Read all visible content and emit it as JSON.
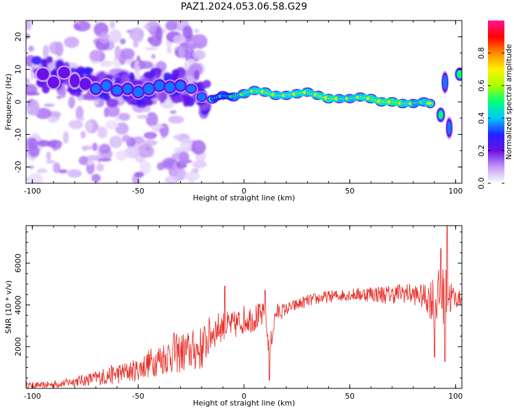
{
  "chart_data": [
    {
      "type": "heatmap",
      "title": "PAZ1.2024.053.06.58.G29",
      "xlabel": "Height of straight line (km)",
      "ylabel": "Frequency (Hz)",
      "xlim": [
        -103,
        103
      ],
      "ylim": [
        -25,
        25
      ],
      "xticks": [
        -100,
        -50,
        0,
        50,
        100
      ],
      "yticks": [
        -20,
        -10,
        0,
        10,
        20
      ],
      "colorbar": {
        "label": "Normalized spectral amplitude",
        "range": [
          0,
          1
        ],
        "ticks": [
          "0.0",
          "0.2",
          "0.4",
          "0.6",
          "0.8"
        ],
        "colormap": [
          "#ffffff",
          "#c39bf6",
          "#6a10e8",
          "#2323ff",
          "#00c8ff",
          "#00ff7a",
          "#a9ff00",
          "#fff200",
          "#ff8a00",
          "#ff0000",
          "#ff1493"
        ]
      },
      "ridge": [
        {
          "x": -95,
          "y": 8.5,
          "a": 0.25,
          "w": 3.5,
          "h": 2.2
        },
        {
          "x": -90,
          "y": 6.0,
          "a": 0.3,
          "w": 3.0,
          "h": 2.0
        },
        {
          "x": -85,
          "y": 9.0,
          "a": 0.28,
          "w": 3.2,
          "h": 2.0
        },
        {
          "x": -80,
          "y": 6.5,
          "a": 0.25,
          "w": 2.8,
          "h": 2.5
        },
        {
          "x": -75,
          "y": 5.5,
          "a": 0.3,
          "w": 3.0,
          "h": 2.0
        },
        {
          "x": -70,
          "y": 4.0,
          "a": 0.35,
          "w": 3.0,
          "h": 2.0
        },
        {
          "x": -65,
          "y": 5.0,
          "a": 0.38,
          "w": 3.0,
          "h": 2.0
        },
        {
          "x": -60,
          "y": 3.5,
          "a": 0.35,
          "w": 3.2,
          "h": 2.0
        },
        {
          "x": -55,
          "y": 4.0,
          "a": 0.36,
          "w": 3.0,
          "h": 2.0
        },
        {
          "x": -50,
          "y": 3.0,
          "a": 0.4,
          "w": 3.0,
          "h": 2.0
        },
        {
          "x": -45,
          "y": 4.0,
          "a": 0.42,
          "w": 3.0,
          "h": 2.0
        },
        {
          "x": -40,
          "y": 5.0,
          "a": 0.38,
          "w": 3.0,
          "h": 2.0
        },
        {
          "x": -35,
          "y": 4.5,
          "a": 0.4,
          "w": 3.0,
          "h": 2.0
        },
        {
          "x": -30,
          "y": 5.0,
          "a": 0.36,
          "w": 3.0,
          "h": 2.0
        },
        {
          "x": -25,
          "y": 4.0,
          "a": 0.4,
          "w": 2.8,
          "h": 1.5
        },
        {
          "x": -20,
          "y": 1.5,
          "a": 0.42,
          "w": 2.5,
          "h": 1.5
        },
        {
          "x": -15,
          "y": 0.8,
          "a": 0.52,
          "w": 2.5,
          "h": 1.2
        },
        {
          "x": -10,
          "y": 2.0,
          "a": 0.5,
          "w": 2.5,
          "h": 1.2
        },
        {
          "x": -5,
          "y": 1.5,
          "a": 0.6,
          "w": 2.5,
          "h": 1.2
        },
        {
          "x": 0,
          "y": 2.5,
          "a": 0.7,
          "w": 2.5,
          "h": 1.2
        },
        {
          "x": 5,
          "y": 3.5,
          "a": 0.72,
          "w": 2.5,
          "h": 1.2
        },
        {
          "x": 10,
          "y": 3.0,
          "a": 0.8,
          "w": 2.5,
          "h": 1.2
        },
        {
          "x": 15,
          "y": 2.0,
          "a": 0.75,
          "w": 2.5,
          "h": 1.2
        },
        {
          "x": 20,
          "y": 2.0,
          "a": 0.7,
          "w": 2.5,
          "h": 1.2
        },
        {
          "x": 25,
          "y": 2.5,
          "a": 0.78,
          "w": 2.5,
          "h": 1.2
        },
        {
          "x": 30,
          "y": 3.0,
          "a": 0.75,
          "w": 2.5,
          "h": 1.2
        },
        {
          "x": 35,
          "y": 2.0,
          "a": 0.72,
          "w": 2.5,
          "h": 1.2
        },
        {
          "x": 40,
          "y": 1.0,
          "a": 0.92,
          "w": 2.5,
          "h": 1.2
        },
        {
          "x": 45,
          "y": 1.0,
          "a": 0.7,
          "w": 2.5,
          "h": 1.2
        },
        {
          "x": 50,
          "y": 1.0,
          "a": 0.72,
          "w": 2.5,
          "h": 1.2
        },
        {
          "x": 55,
          "y": 1.5,
          "a": 0.7,
          "w": 2.5,
          "h": 1.2
        },
        {
          "x": 60,
          "y": 1.0,
          "a": 0.85,
          "w": 2.5,
          "h": 1.2
        },
        {
          "x": 65,
          "y": 0.0,
          "a": 0.75,
          "w": 2.5,
          "h": 1.2
        },
        {
          "x": 70,
          "y": 0.0,
          "a": 0.92,
          "w": 2.5,
          "h": 1.2
        },
        {
          "x": 75,
          "y": -0.5,
          "a": 0.8,
          "w": 2.5,
          "h": 1.2
        },
        {
          "x": 80,
          "y": -0.5,
          "a": 0.65,
          "w": 2.5,
          "h": 1.2
        },
        {
          "x": 85,
          "y": 0.0,
          "a": 0.7,
          "w": 2.5,
          "h": 1.2
        },
        {
          "x": 88,
          "y": -0.5,
          "a": 0.8,
          "w": 2.0,
          "h": 1.2
        },
        {
          "x": 93,
          "y": -4.0,
          "a": 0.5,
          "w": 1.8,
          "h": 2.0
        },
        {
          "x": 95,
          "y": 6.0,
          "a": 0.4,
          "w": 1.5,
          "h": 3.0
        },
        {
          "x": 97,
          "y": -8.0,
          "a": 0.35,
          "w": 1.5,
          "h": 3.0
        },
        {
          "x": 102,
          "y": 8.5,
          "a": 0.55,
          "w": 2.0,
          "h": 1.8
        }
      ]
    },
    {
      "type": "line",
      "xlabel": "Height of straight line (km)",
      "ylabel": "SNR (10 * v/v)",
      "xlim": [
        -103,
        103
      ],
      "ylim": [
        0,
        7800
      ],
      "xticks": [
        -100,
        -50,
        0,
        50,
        100
      ],
      "yticks": [
        2000,
        4000,
        6000
      ],
      "color": "#e8322b",
      "x": [
        -103,
        -95,
        -90,
        -85,
        -80,
        -75,
        -70,
        -65,
        -60,
        -55,
        -50,
        -45,
        -40,
        -35,
        -30,
        -25,
        -20,
        -15,
        -10,
        -5,
        0,
        5,
        10,
        12,
        15,
        20,
        25,
        30,
        35,
        40,
        45,
        50,
        55,
        60,
        65,
        70,
        75,
        80,
        85,
        90,
        95,
        100,
        103
      ],
      "y": [
        150,
        150,
        200,
        250,
        350,
        400,
        500,
        600,
        700,
        800,
        900,
        1200,
        1400,
        1600,
        1700,
        1800,
        1900,
        2700,
        3000,
        3000,
        3300,
        3400,
        3500,
        1800,
        3600,
        3800,
        4000,
        4200,
        4300,
        4400,
        4450,
        4500,
        4500,
        4550,
        4500,
        4500,
        4600,
        4500,
        4400,
        4300,
        4500,
        4300,
        4300
      ],
      "noise": [
        150,
        150,
        200,
        200,
        250,
        300,
        350,
        450,
        500,
        500,
        550,
        700,
        800,
        900,
        1000,
        1000,
        1100,
        900,
        700,
        700,
        700,
        700,
        600,
        500,
        500,
        300,
        300,
        300,
        300,
        300,
        300,
        300,
        350,
        400,
        450,
        450,
        500,
        500,
        600,
        1300,
        1400,
        500,
        300
      ],
      "spikes": [
        {
          "x": -33,
          "y": 2650
        },
        {
          "x": -9,
          "y": 4900
        },
        {
          "x": 10,
          "y": 4700
        },
        {
          "x": 12,
          "y": 400
        },
        {
          "x": 90,
          "y": 1500
        },
        {
          "x": 93,
          "y": 6700
        },
        {
          "x": 95,
          "y": 1300
        },
        {
          "x": 96,
          "y": 7800
        }
      ]
    }
  ]
}
